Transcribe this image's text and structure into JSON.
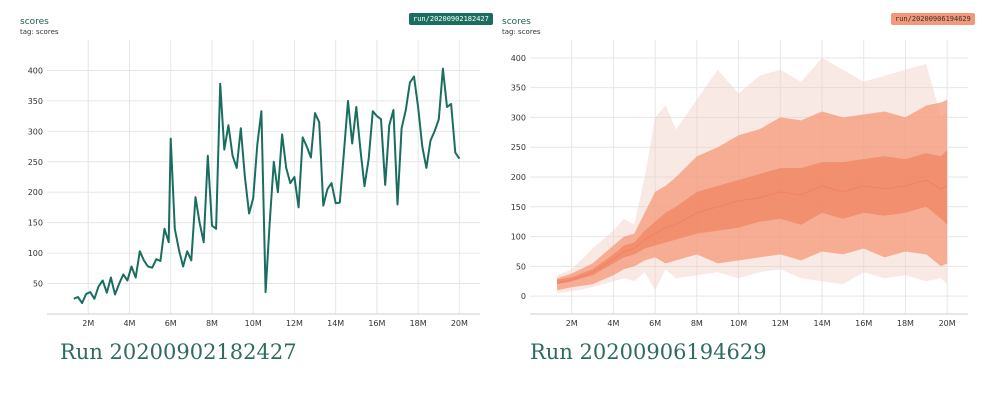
{
  "left_panel": {
    "title": "scores",
    "tag": "tag: scores",
    "run_chip": "run/20200902182427",
    "chip_color": "#1a6e60",
    "caption": "Run 20200902182427"
  },
  "right_panel": {
    "title": "scores",
    "tag": "tag: scores",
    "run_chip": "run/20200906194629",
    "chip_color": "#f4987a",
    "caption": "Run 20200906194629"
  },
  "chart_data": [
    {
      "type": "line",
      "title": "scores",
      "xlabel": "",
      "ylabel": "",
      "xlim": [
        0,
        21
      ],
      "ylim": [
        0,
        450
      ],
      "x_ticks": [
        2,
        4,
        6,
        8,
        10,
        12,
        14,
        16,
        18,
        20
      ],
      "x_tick_labels": [
        "2M",
        "4M",
        "6M",
        "8M",
        "10M",
        "12M",
        "14M",
        "16M",
        "18M",
        "20M"
      ],
      "y_ticks": [
        50,
        100,
        150,
        200,
        250,
        300,
        350,
        400
      ],
      "y_tick_labels": [
        "50",
        "100",
        "150",
        "200",
        "250",
        "300",
        "350",
        "400"
      ],
      "grid": true,
      "color": "#1a6e60",
      "series": [
        {
          "x": [
            1.3,
            1.5,
            1.7,
            1.9,
            2.1,
            2.3,
            2.5,
            2.7,
            2.9,
            3.1,
            3.3,
            3.5,
            3.7,
            3.9,
            4.1,
            4.3,
            4.5,
            4.7,
            4.9,
            5.1,
            5.3,
            5.5,
            5.7,
            5.9,
            6.0,
            6.2,
            6.4,
            6.6,
            6.8,
            7.0,
            7.2,
            7.4,
            7.6,
            7.8,
            8.0,
            8.2,
            8.4,
            8.6,
            8.8,
            9.0,
            9.2,
            9.4,
            9.6,
            9.8,
            10.0,
            10.2,
            10.4,
            10.6,
            10.8,
            11.0,
            11.2,
            11.4,
            11.6,
            11.8,
            12.0,
            12.2,
            12.4,
            12.6,
            12.8,
            13.0,
            13.2,
            13.4,
            13.6,
            13.8,
            14.0,
            14.2,
            14.4,
            14.6,
            14.8,
            15.0,
            15.2,
            15.4,
            15.6,
            15.8,
            16.0,
            16.2,
            16.4,
            16.6,
            16.8,
            17.0,
            17.2,
            17.4,
            17.6,
            17.8,
            18.0,
            18.2,
            18.4,
            18.6,
            18.8,
            19.0,
            19.2,
            19.4,
            19.6,
            19.8,
            20.0
          ],
          "y": [
            25,
            28,
            18,
            33,
            36,
            25,
            45,
            55,
            35,
            60,
            32,
            50,
            65,
            55,
            78,
            60,
            103,
            88,
            78,
            76,
            90,
            87,
            140,
            118,
            288,
            140,
            105,
            78,
            103,
            88,
            192,
            150,
            118,
            260,
            145,
            140,
            378,
            270,
            310,
            260,
            240,
            305,
            225,
            165,
            190,
            278,
            333,
            36,
            150,
            250,
            200,
            295,
            240,
            215,
            225,
            175,
            290,
            275,
            257,
            330,
            315,
            178,
            205,
            215,
            182,
            183,
            265,
            350,
            280,
            340,
            270,
            210,
            255,
            333,
            325,
            320,
            212,
            310,
            335,
            180,
            305,
            335,
            380,
            390,
            340,
            275,
            240,
            285,
            300,
            320,
            403,
            340,
            345,
            265,
            255
          ]
        }
      ]
    },
    {
      "type": "area",
      "title": "scores",
      "xlabel": "",
      "ylabel": "",
      "xlim": [
        0,
        21
      ],
      "ylim": [
        -30,
        430
      ],
      "x_ticks": [
        2,
        4,
        6,
        8,
        10,
        12,
        14,
        16,
        18,
        20
      ],
      "x_tick_labels": [
        "2M",
        "4M",
        "6M",
        "8M",
        "10M",
        "12M",
        "14M",
        "16M",
        "18M",
        "20M"
      ],
      "y_ticks": [
        0,
        50,
        100,
        150,
        200,
        250,
        300,
        350,
        400
      ],
      "y_tick_labels": [
        "0",
        "50",
        "100",
        "150",
        "200",
        "250",
        "300",
        "350",
        "400"
      ],
      "grid": true,
      "color": "#f4987a",
      "bands": [
        {
          "level": "outer",
          "x": [
            1.3,
            2,
            3,
            4,
            4.5,
            5,
            5.5,
            6,
            6.5,
            7,
            8,
            9,
            10,
            11,
            12,
            13,
            14,
            15,
            16,
            17,
            18,
            19,
            19.7,
            20
          ],
          "y_low": [
            5,
            8,
            15,
            25,
            30,
            25,
            40,
            10,
            45,
            30,
            35,
            40,
            30,
            40,
            45,
            30,
            25,
            20,
            40,
            30,
            35,
            25,
            30,
            20
          ],
          "y_high": [
            35,
            45,
            80,
            110,
            130,
            120,
            200,
            300,
            320,
            280,
            330,
            380,
            340,
            370,
            380,
            360,
            400,
            380,
            360,
            370,
            380,
            390,
            300,
            310
          ]
        },
        {
          "level": "middle",
          "x": [
            1.3,
            2,
            3,
            4,
            4.5,
            5,
            5.5,
            6,
            6.5,
            7,
            8,
            9,
            10,
            11,
            12,
            13,
            14,
            15,
            16,
            17,
            18,
            19,
            19.7,
            20
          ],
          "y_low": [
            10,
            15,
            20,
            35,
            45,
            50,
            60,
            65,
            55,
            60,
            70,
            55,
            60,
            65,
            70,
            60,
            75,
            70,
            80,
            65,
            75,
            70,
            50,
            55
          ],
          "y_high": [
            30,
            38,
            55,
            85,
            100,
            105,
            140,
            175,
            185,
            200,
            235,
            250,
            270,
            280,
            300,
            295,
            310,
            300,
            305,
            310,
            300,
            320,
            325,
            330
          ]
        },
        {
          "level": "inner",
          "x": [
            1.3,
            2,
            3,
            4,
            4.5,
            5,
            5.5,
            6,
            6.5,
            7,
            8,
            9,
            10,
            11,
            12,
            13,
            14,
            15,
            16,
            17,
            18,
            19,
            19.7,
            20
          ],
          "y_low": [
            20,
            25,
            35,
            55,
            65,
            70,
            80,
            85,
            90,
            95,
            105,
            110,
            115,
            125,
            130,
            120,
            140,
            130,
            140,
            135,
            140,
            150,
            130,
            120
          ],
          "y_high": [
            28,
            32,
            45,
            70,
            85,
            90,
            110,
            125,
            140,
            150,
            175,
            185,
            195,
            205,
            215,
            215,
            225,
            225,
            230,
            235,
            230,
            240,
            235,
            245
          ]
        }
      ],
      "series": [
        {
          "name": "",
          "x": [
            1.3,
            2,
            3,
            4,
            4.5,
            5,
            5.5,
            6,
            6.5,
            7,
            8,
            9,
            10,
            11,
            12,
            13,
            14,
            15,
            16,
            17,
            18,
            19,
            19.7,
            20
          ],
          "y": [
            22,
            27,
            40,
            62,
            75,
            80,
            95,
            105,
            115,
            120,
            140,
            150,
            160,
            165,
            175,
            170,
            185,
            175,
            185,
            180,
            185,
            195,
            180,
            185
          ]
        }
      ]
    }
  ]
}
